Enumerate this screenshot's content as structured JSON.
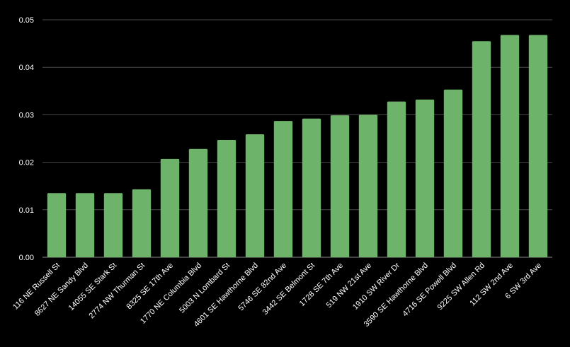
{
  "chart_data": {
    "type": "bar",
    "categories": [
      "116 NE Russell St",
      "8627 NE Sandy Blvd",
      "14055 SE Stark St",
      "2774 NW Thurman St",
      "8325 SE 17th Ave",
      "1770 NE Columbia Blvd",
      "5003 N Lombard St",
      "4601 SE Hawthorne Blvd",
      "5746 SE 82nd Ave",
      "3442 SE Belmont St",
      "1728 SE 7th Ave",
      "519 NW 21st Ave",
      "1910 SW River Dr",
      "3590 SE Hawthorne Blvd",
      "4716 SE Powell Blvd",
      "9225 SW Allen Rd",
      "112 SW 2nd Ave",
      "6 SW 3rd Ave"
    ],
    "values": [
      0.0135,
      0.0135,
      0.0135,
      0.0143,
      0.0207,
      0.0228,
      0.0247,
      0.0259,
      0.0287,
      0.0292,
      0.0299,
      0.03,
      0.0328,
      0.0332,
      0.0353,
      0.0455,
      0.0468,
      0.0468
    ],
    "yticks": [
      "0.00",
      "0.01",
      "0.02",
      "0.03",
      "0.04",
      "0.05"
    ],
    "ylim": [
      0,
      0.05
    ],
    "title": "",
    "xlabel": "",
    "ylabel": "",
    "grid": true,
    "legend": "none",
    "colors": {
      "bar": "#6db36a",
      "background": "#000000",
      "grid": "#4a4a4a",
      "text": "#ffffff"
    }
  }
}
